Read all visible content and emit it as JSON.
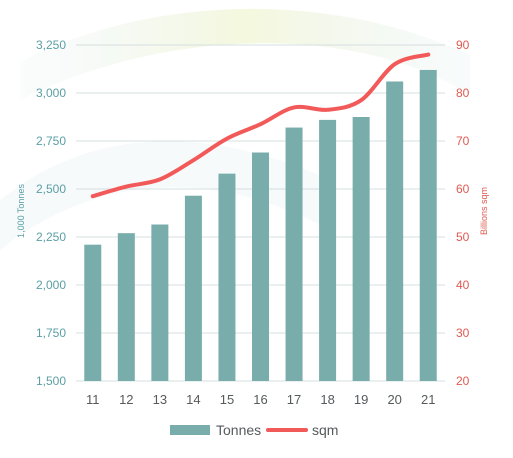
{
  "chart_data": {
    "type": "bar",
    "categories": [
      "11",
      "12",
      "13",
      "14",
      "15",
      "16",
      "17",
      "18",
      "19",
      "20",
      "21"
    ],
    "series": [
      {
        "name": "Tonnes",
        "type": "bar",
        "axis": "left",
        "color": "#79adab",
        "values": [
          2210,
          2270,
          2315,
          2465,
          2580,
          2690,
          2820,
          2860,
          2875,
          3060,
          3120
        ]
      },
      {
        "name": "sqm",
        "type": "line",
        "axis": "right",
        "color": "#f25a5a",
        "values": [
          58.5,
          60.5,
          62,
          66,
          70.5,
          73.5,
          77,
          76.5,
          78.5,
          86,
          88
        ]
      }
    ],
    "y_left": {
      "label": "1,000 Tonnes",
      "ylim": [
        1500,
        3250
      ],
      "ticks": [
        "1,500",
        "1,750",
        "2,000",
        "2,250",
        "2,500",
        "2,750",
        "3,000",
        "3,250"
      ]
    },
    "y_right": {
      "label": "Billions sqm",
      "ylim": [
        20,
        90
      ],
      "ticks": [
        "20",
        "30",
        "40",
        "50",
        "60",
        "70",
        "80",
        "90"
      ]
    },
    "grid": true,
    "legend": "bottom",
    "colors": {
      "left_axis_text": "#5b9fa5",
      "right_axis_text": "#e05a50",
      "grid": "#d6dfe0"
    }
  }
}
